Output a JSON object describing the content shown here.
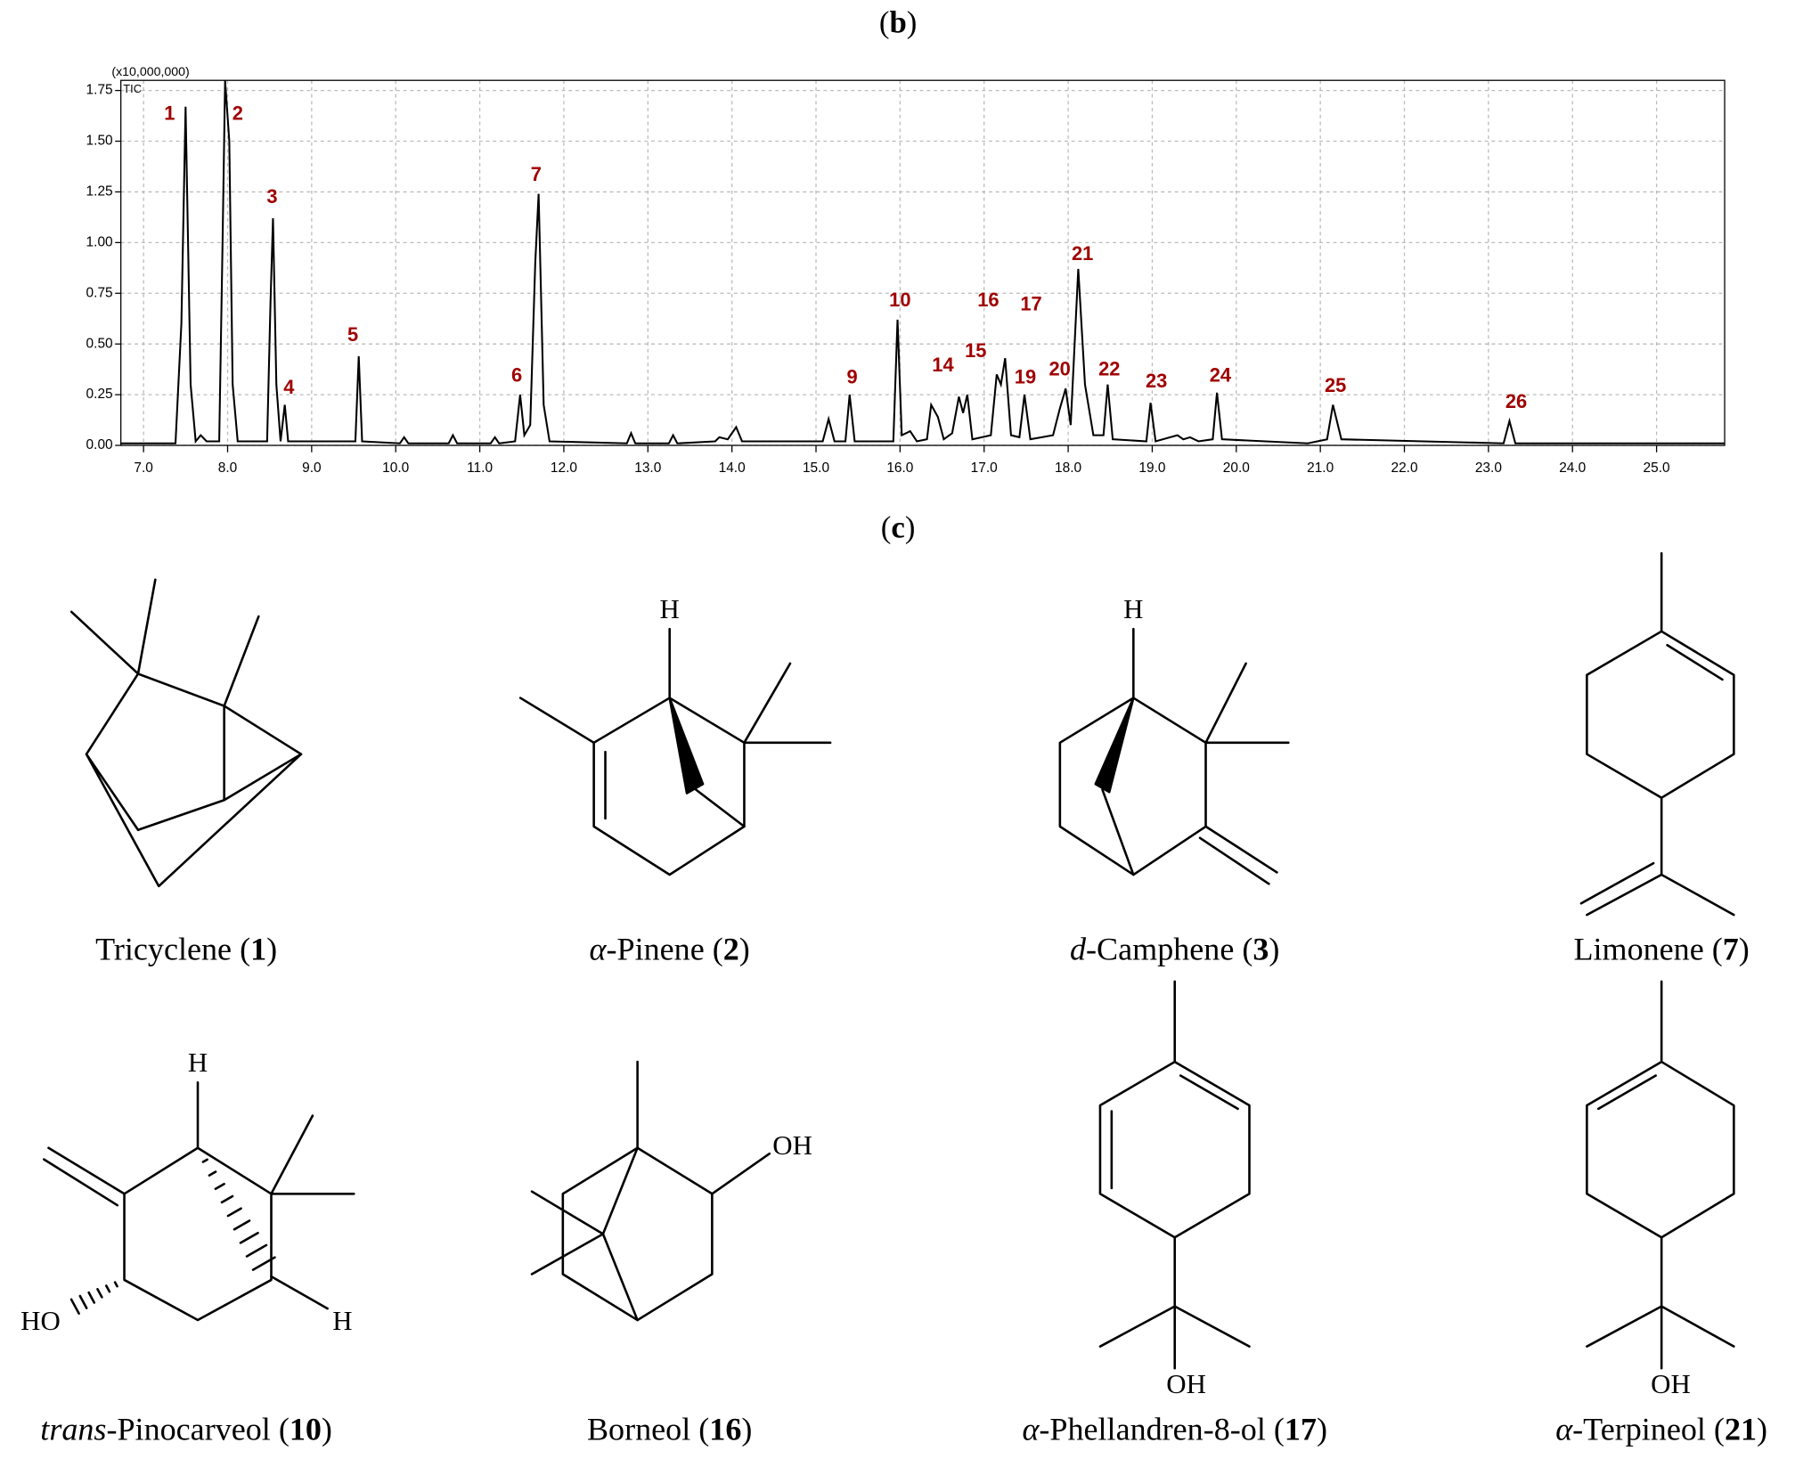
{
  "panel_b": {
    "parts": [
      {
        "text": "("
      },
      {
        "text": "b",
        "style": "bold"
      },
      {
        "text": ")"
      }
    ]
  },
  "panel_c": {
    "parts": [
      {
        "text": "("
      },
      {
        "text": "c",
        "style": "bold"
      },
      {
        "text": ")"
      }
    ]
  },
  "chart_data": {
    "type": "line",
    "y_multiplier": "(x10,000,000)",
    "trace_label": "TIC",
    "grid": true,
    "xlim": [
      6.73,
      25.81
    ],
    "ylim": [
      0,
      1.8
    ],
    "xticks": [
      {
        "value": 7,
        "label": "7.0"
      },
      {
        "value": 8,
        "label": "8.0"
      },
      {
        "value": 9,
        "label": "9.0"
      },
      {
        "value": 10,
        "label": "10.0"
      },
      {
        "value": 11,
        "label": "11.0"
      },
      {
        "value": 12,
        "label": "12.0"
      },
      {
        "value": 13,
        "label": "13.0"
      },
      {
        "value": 14,
        "label": "14.0"
      },
      {
        "value": 15,
        "label": "15.0"
      },
      {
        "value": 16,
        "label": "16.0"
      },
      {
        "value": 17,
        "label": "17.0"
      },
      {
        "value": 18,
        "label": "18.0"
      },
      {
        "value": 19,
        "label": "19.0"
      },
      {
        "value": 20,
        "label": "20.0"
      },
      {
        "value": 21,
        "label": "21.0"
      },
      {
        "value": 22,
        "label": "22.0"
      },
      {
        "value": 23,
        "label": "23.0"
      },
      {
        "value": 24,
        "label": "24.0"
      },
      {
        "value": 25,
        "label": "25.0"
      }
    ],
    "yticks": [
      {
        "value": 0,
        "label": "0.00"
      },
      {
        "value": 0.25,
        "label": "0.25"
      },
      {
        "value": 0.5,
        "label": "0.50"
      },
      {
        "value": 0.75,
        "label": "0.75"
      },
      {
        "value": 1,
        "label": "1.00"
      },
      {
        "value": 1.25,
        "label": "1.25"
      },
      {
        "value": 1.5,
        "label": "1.50"
      },
      {
        "value": 1.75,
        "label": "1.75"
      }
    ],
    "series": [
      {
        "color": "#000000",
        "x": [
          6.73,
          7.38,
          7.45,
          7.5,
          7.56,
          7.62,
          7.68,
          7.75,
          7.9,
          7.94,
          7.97,
          8.02,
          8.06,
          8.12,
          8.47,
          8.51,
          8.54,
          8.58,
          8.63,
          8.68,
          8.72,
          9.52,
          9.56,
          9.6,
          10.05,
          10.1,
          10.15,
          10.63,
          10.68,
          10.73,
          11.13,
          11.18,
          11.23,
          11.42,
          11.48,
          11.53,
          11.6,
          11.66,
          11.7,
          11.76,
          11.83,
          12.75,
          12.8,
          12.85,
          13.25,
          13.3,
          13.35,
          13.8,
          13.85,
          13.95,
          14.05,
          14.12,
          15.08,
          15.15,
          15.22,
          15.35,
          15.4,
          15.46,
          15.92,
          15.97,
          16.02,
          16.12,
          16.2,
          16.32,
          16.37,
          16.45,
          16.52,
          16.62,
          16.7,
          16.75,
          16.8,
          16.86,
          17.08,
          17.15,
          17.2,
          17.25,
          17.32,
          17.42,
          17.48,
          17.55,
          17.82,
          17.9,
          17.97,
          18.03,
          18.12,
          18.2,
          18.3,
          18.42,
          18.47,
          18.53,
          18.93,
          18.98,
          19.04,
          19.3,
          19.37,
          19.45,
          19.55,
          19.72,
          19.77,
          19.83,
          20.85,
          21.08,
          21.15,
          21.25,
          23.18,
          23.25,
          23.32,
          25.81
        ],
        "values": [
          0.01,
          0.01,
          0.6,
          1.67,
          0.3,
          0.02,
          0.05,
          0.02,
          0.02,
          1.0,
          1.8,
          1.5,
          0.3,
          0.02,
          0.02,
          0.7,
          1.12,
          0.3,
          0.02,
          0.2,
          0.02,
          0.02,
          0.44,
          0.02,
          0.01,
          0.04,
          0.01,
          0.01,
          0.05,
          0.01,
          0.01,
          0.04,
          0.01,
          0.02,
          0.25,
          0.05,
          0.1,
          0.9,
          1.24,
          0.2,
          0.02,
          0.01,
          0.06,
          0.01,
          0.01,
          0.05,
          0.01,
          0.02,
          0.04,
          0.03,
          0.09,
          0.02,
          0.02,
          0.13,
          0.02,
          0.02,
          0.25,
          0.02,
          0.02,
          0.62,
          0.05,
          0.07,
          0.02,
          0.03,
          0.2,
          0.14,
          0.03,
          0.06,
          0.24,
          0.16,
          0.25,
          0.03,
          0.05,
          0.35,
          0.3,
          0.43,
          0.05,
          0.04,
          0.25,
          0.03,
          0.05,
          0.18,
          0.28,
          0.1,
          0.87,
          0.3,
          0.05,
          0.05,
          0.3,
          0.03,
          0.02,
          0.21,
          0.02,
          0.05,
          0.03,
          0.04,
          0.02,
          0.03,
          0.26,
          0.03,
          0.01,
          0.03,
          0.2,
          0.03,
          0.01,
          0.12,
          0.01,
          0.01
        ]
      }
    ],
    "peak_label_color": "#a00000",
    "peak_labels": [
      {
        "text": "1",
        "x": 7.31,
        "y": 1.63
      },
      {
        "text": "2",
        "x": 8.12,
        "y": 1.63
      },
      {
        "text": "3",
        "x": 8.53,
        "y": 1.22
      },
      {
        "text": "4",
        "x": 8.73,
        "y": 0.28
      },
      {
        "text": "5",
        "x": 9.49,
        "y": 0.54
      },
      {
        "text": "6",
        "x": 11.44,
        "y": 0.34
      },
      {
        "text": "7",
        "x": 11.67,
        "y": 1.33
      },
      {
        "text": "9",
        "x": 15.43,
        "y": 0.33
      },
      {
        "text": "10",
        "x": 16.0,
        "y": 0.71
      },
      {
        "text": "14",
        "x": 16.51,
        "y": 0.39
      },
      {
        "text": "15",
        "x": 16.9,
        "y": 0.46
      },
      {
        "text": "16",
        "x": 17.05,
        "y": 0.71
      },
      {
        "text": "17",
        "x": 17.56,
        "y": 0.69
      },
      {
        "text": "19",
        "x": 17.49,
        "y": 0.33
      },
      {
        "text": "20",
        "x": 17.9,
        "y": 0.37
      },
      {
        "text": "21",
        "x": 18.17,
        "y": 0.94
      },
      {
        "text": "22",
        "x": 18.49,
        "y": 0.37
      },
      {
        "text": "23",
        "x": 19.05,
        "y": 0.31
      },
      {
        "text": "24",
        "x": 19.81,
        "y": 0.34
      },
      {
        "text": "25",
        "x": 21.18,
        "y": 0.29
      },
      {
        "text": "26",
        "x": 23.33,
        "y": 0.21
      }
    ]
  },
  "structures": [
    {
      "name": [
        {
          "text": "Tricyclene ("
        },
        {
          "text": "1",
          "style": "bold"
        },
        {
          "text": ")"
        }
      ],
      "atoms": []
    },
    {
      "name": [
        {
          "text": "α",
          "style": "italic"
        },
        {
          "text": "-Pinene ("
        },
        {
          "text": "2",
          "style": "bold"
        },
        {
          "text": ")"
        }
      ],
      "atoms": [
        "H"
      ]
    },
    {
      "name": [
        {
          "text": "d",
          "style": "italic"
        },
        {
          "text": "-Camphene ("
        },
        {
          "text": "3",
          "style": "bold"
        },
        {
          "text": ")"
        }
      ],
      "atoms": [
        "H"
      ]
    },
    {
      "name": [
        {
          "text": "Limonene ("
        },
        {
          "text": "7",
          "style": "bold"
        },
        {
          "text": ")"
        }
      ],
      "atoms": []
    },
    {
      "name": [
        {
          "text": "trans",
          "style": "italic"
        },
        {
          "text": "-Pinocarveol ("
        },
        {
          "text": "10",
          "style": "bold"
        },
        {
          "text": ")"
        }
      ],
      "atoms": [
        "H",
        "H",
        "HO"
      ]
    },
    {
      "name": [
        {
          "text": "Borneol ("
        },
        {
          "text": "16",
          "style": "bold"
        },
        {
          "text": ")"
        }
      ],
      "atoms": [
        "OH"
      ]
    },
    {
      "name": [
        {
          "text": "α",
          "style": "italic"
        },
        {
          "text": "-Phellandren-8-ol ("
        },
        {
          "text": "17",
          "style": "bold"
        },
        {
          "text": ")"
        }
      ],
      "atoms": [
        "OH"
      ]
    },
    {
      "name": [
        {
          "text": "α",
          "style": "italic"
        },
        {
          "text": "-Terpineol ("
        },
        {
          "text": "21",
          "style": "bold"
        },
        {
          "text": ")"
        }
      ],
      "atoms": [
        "OH"
      ]
    }
  ]
}
